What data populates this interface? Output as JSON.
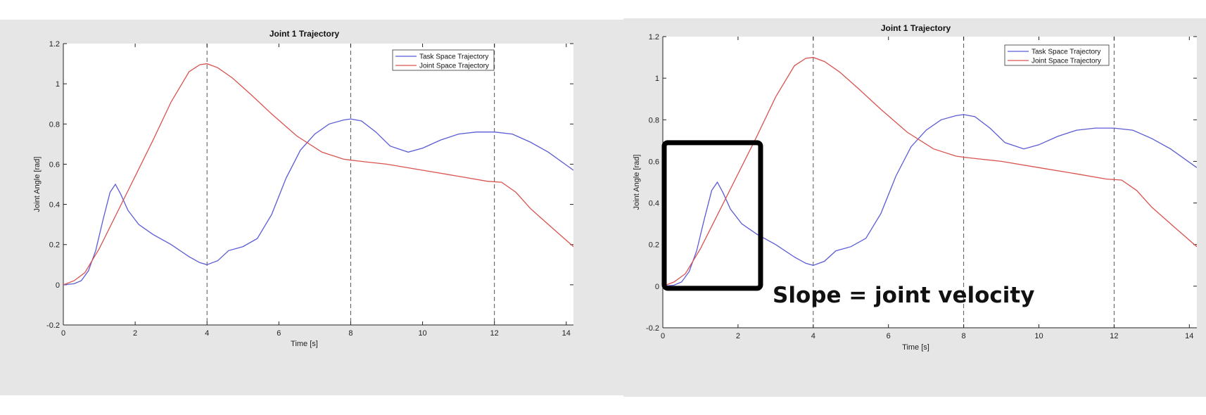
{
  "colors": {
    "task": "#5b5bd6",
    "joint": "#d9534f",
    "figure_bg": "#e6e6e6"
  },
  "annotation": {
    "text": "Slope = joint velocity"
  },
  "chart_data": [
    {
      "type": "line",
      "title": "Joint 1 Trajectory",
      "xlabel": "Time [s]",
      "ylabel": "Joint Angle [rad]",
      "xlim": [
        0,
        14.2
      ],
      "ylim": [
        -0.2,
        1.2
      ],
      "xticks": [
        0,
        2,
        4,
        6,
        8,
        10,
        12,
        14
      ],
      "yticks": [
        -0.2,
        0,
        0.2,
        0.4,
        0.6,
        0.8,
        1,
        1.2
      ],
      "vlines": [
        4,
        8,
        12
      ],
      "legend": "top-right",
      "series": [
        {
          "name": "Task Space Trajectory",
          "x": [
            0,
            0.3,
            0.5,
            0.7,
            0.9,
            1.1,
            1.3,
            1.45,
            1.6,
            1.8,
            2.1,
            2.5,
            3.0,
            3.5,
            3.8,
            4.0,
            4.3,
            4.6,
            5.0,
            5.4,
            5.8,
            6.2,
            6.6,
            7.0,
            7.4,
            7.8,
            8.0,
            8.3,
            8.7,
            9.1,
            9.6,
            10.0,
            10.5,
            11.0,
            11.5,
            12.0,
            12.5,
            13.0,
            13.5,
            14.2
          ],
          "y": [
            0,
            0.005,
            0.02,
            0.07,
            0.17,
            0.32,
            0.46,
            0.5,
            0.45,
            0.37,
            0.3,
            0.25,
            0.2,
            0.14,
            0.11,
            0.1,
            0.12,
            0.17,
            0.19,
            0.23,
            0.35,
            0.53,
            0.67,
            0.75,
            0.8,
            0.82,
            0.825,
            0.815,
            0.76,
            0.69,
            0.66,
            0.68,
            0.72,
            0.75,
            0.76,
            0.76,
            0.75,
            0.71,
            0.66,
            0.57
          ]
        },
        {
          "name": "Joint Space Trajectory",
          "x": [
            0,
            0.3,
            0.6,
            1.0,
            1.5,
            2.0,
            2.5,
            3.0,
            3.5,
            3.8,
            4.0,
            4.3,
            4.7,
            5.2,
            5.8,
            6.5,
            7.2,
            7.8,
            8.0,
            8.5,
            9.0,
            10.0,
            11.0,
            11.8,
            12.2,
            12.6,
            13.0,
            13.5,
            14.2
          ],
          "y": [
            0,
            0.02,
            0.06,
            0.18,
            0.36,
            0.54,
            0.72,
            0.91,
            1.06,
            1.095,
            1.1,
            1.08,
            1.03,
            0.95,
            0.85,
            0.74,
            0.66,
            0.625,
            0.62,
            0.61,
            0.6,
            0.57,
            0.54,
            0.515,
            0.51,
            0.46,
            0.38,
            0.3,
            0.19
          ]
        }
      ]
    },
    {
      "type": "line",
      "title": "Joint 1 Trajectory",
      "xlabel": "Time [s]",
      "ylabel": "Joint Angle [rad]",
      "xlim": [
        0,
        14.2
      ],
      "ylim": [
        -0.2,
        1.2
      ],
      "xticks": [
        0,
        2,
        4,
        6,
        8,
        10,
        12,
        14
      ],
      "yticks": [
        -0.2,
        0,
        0.2,
        0.4,
        0.6,
        0.8,
        1,
        1.2
      ],
      "vlines": [
        4,
        8,
        12
      ],
      "legend": "top-right",
      "highlight_box": {
        "x": [
          0,
          2.6
        ],
        "y": [
          -0.01,
          0.69
        ]
      },
      "series": [
        {
          "name": "Task Space Trajectory",
          "x": [
            0,
            0.3,
            0.5,
            0.7,
            0.9,
            1.1,
            1.3,
            1.45,
            1.6,
            1.8,
            2.1,
            2.5,
            3.0,
            3.5,
            3.8,
            4.0,
            4.3,
            4.6,
            5.0,
            5.4,
            5.8,
            6.2,
            6.6,
            7.0,
            7.4,
            7.8,
            8.0,
            8.3,
            8.7,
            9.1,
            9.6,
            10.0,
            10.5,
            11.0,
            11.5,
            12.0,
            12.5,
            13.0,
            13.5,
            14.2
          ],
          "y": [
            0,
            0.005,
            0.02,
            0.07,
            0.17,
            0.32,
            0.46,
            0.5,
            0.45,
            0.37,
            0.3,
            0.25,
            0.2,
            0.14,
            0.11,
            0.1,
            0.12,
            0.17,
            0.19,
            0.23,
            0.35,
            0.53,
            0.67,
            0.75,
            0.8,
            0.82,
            0.825,
            0.815,
            0.76,
            0.69,
            0.66,
            0.68,
            0.72,
            0.75,
            0.76,
            0.76,
            0.75,
            0.71,
            0.66,
            0.57
          ]
        },
        {
          "name": "Joint Space Trajectory",
          "x": [
            0,
            0.3,
            0.6,
            1.0,
            1.5,
            2.0,
            2.5,
            3.0,
            3.5,
            3.8,
            4.0,
            4.3,
            4.7,
            5.2,
            5.8,
            6.5,
            7.2,
            7.8,
            8.0,
            8.5,
            9.0,
            10.0,
            11.0,
            11.8,
            12.2,
            12.6,
            13.0,
            13.5,
            14.2
          ],
          "y": [
            0,
            0.02,
            0.06,
            0.18,
            0.36,
            0.54,
            0.72,
            0.91,
            1.06,
            1.095,
            1.1,
            1.08,
            1.03,
            0.95,
            0.85,
            0.74,
            0.66,
            0.625,
            0.62,
            0.61,
            0.6,
            0.57,
            0.54,
            0.515,
            0.51,
            0.46,
            0.38,
            0.3,
            0.19
          ]
        }
      ]
    }
  ]
}
